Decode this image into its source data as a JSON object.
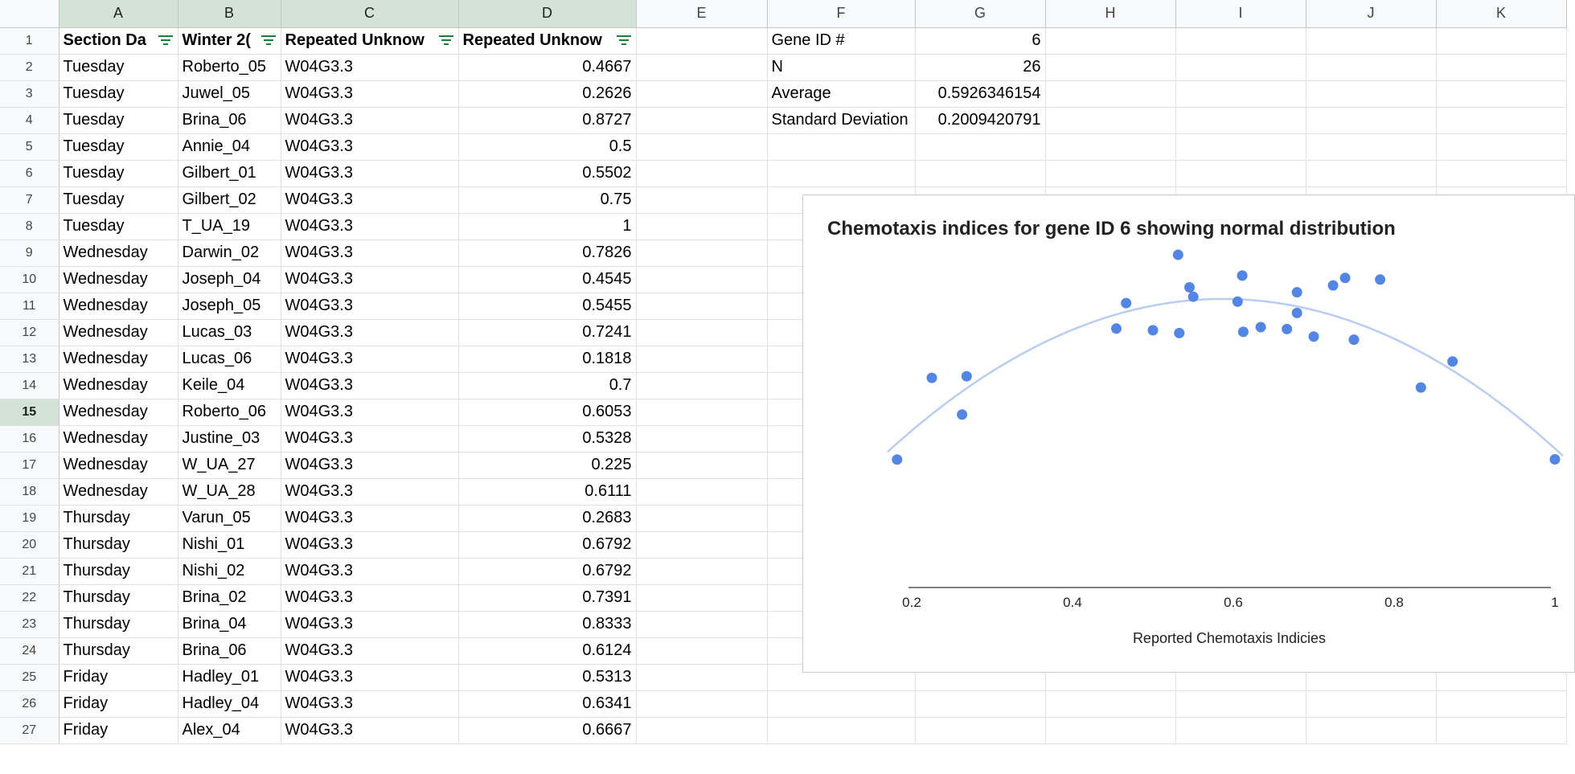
{
  "columns": [
    "A",
    "B",
    "C",
    "D",
    "E",
    "F",
    "G",
    "H",
    "I",
    "J",
    "K"
  ],
  "selected_row": 15,
  "headers": {
    "a": "Section Da",
    "b": "Winter 2(",
    "c": "Repeated Unknow",
    "d": "Repeated Unknow"
  },
  "rows": [
    {
      "day": "Tuesday",
      "name": "Roberto_05",
      "gene": "W04G3.3",
      "value": "0.4667"
    },
    {
      "day": "Tuesday",
      "name": "Juwel_05",
      "gene": "W04G3.3",
      "value": "0.2626"
    },
    {
      "day": "Tuesday",
      "name": "Brina_06",
      "gene": "W04G3.3",
      "value": "0.8727"
    },
    {
      "day": "Tuesday",
      "name": "Annie_04",
      "gene": "W04G3.3",
      "value": "0.5"
    },
    {
      "day": "Tuesday",
      "name": "Gilbert_01",
      "gene": "W04G3.3",
      "value": "0.5502"
    },
    {
      "day": "Tuesday",
      "name": "Gilbert_02",
      "gene": "W04G3.3",
      "value": "0.75"
    },
    {
      "day": "Tuesday",
      "name": "T_UA_19",
      "gene": "W04G3.3",
      "value": "1"
    },
    {
      "day": "Wednesday",
      "name": "Darwin_02",
      "gene": "W04G3.3",
      "value": "0.7826"
    },
    {
      "day": "Wednesday",
      "name": "Joseph_04",
      "gene": "W04G3.3",
      "value": "0.4545"
    },
    {
      "day": "Wednesday",
      "name": "Joseph_05",
      "gene": "W04G3.3",
      "value": "0.5455"
    },
    {
      "day": "Wednesday",
      "name": "Lucas_03",
      "gene": "W04G3.3",
      "value": "0.7241"
    },
    {
      "day": "Wednesday",
      "name": "Lucas_06",
      "gene": "W04G3.3",
      "value": "0.1818"
    },
    {
      "day": "Wednesday",
      "name": "Keile_04",
      "gene": "W04G3.3",
      "value": "0.7"
    },
    {
      "day": "Wednesday",
      "name": "Roberto_06",
      "gene": "W04G3.3",
      "value": "0.6053"
    },
    {
      "day": "Wednesday",
      "name": "Justine_03",
      "gene": "W04G3.3",
      "value": "0.5328"
    },
    {
      "day": "Wednesday",
      "name": "W_UA_27",
      "gene": "W04G3.3",
      "value": "0.225"
    },
    {
      "day": "Wednesday",
      "name": "W_UA_28",
      "gene": "W04G3.3",
      "value": "0.6111"
    },
    {
      "day": "Thursday",
      "name": "Varun_05",
      "gene": "W04G3.3",
      "value": "0.2683"
    },
    {
      "day": "Thursday",
      "name": "Nishi_01",
      "gene": "W04G3.3",
      "value": "0.6792"
    },
    {
      "day": "Thursday",
      "name": "Nishi_02",
      "gene": "W04G3.3",
      "value": "0.6792"
    },
    {
      "day": "Thursday",
      "name": "Brina_02",
      "gene": "W04G3.3",
      "value": "0.7391"
    },
    {
      "day": "Thursday",
      "name": "Brina_04",
      "gene": "W04G3.3",
      "value": "0.8333"
    },
    {
      "day": "Thursday",
      "name": "Brina_06",
      "gene": "W04G3.3",
      "value": "0.6124"
    },
    {
      "day": "Friday",
      "name": "Hadley_01",
      "gene": "W04G3.3",
      "value": "0.5313"
    },
    {
      "day": "Friday",
      "name": "Hadley_04",
      "gene": "W04G3.3",
      "value": "0.6341"
    },
    {
      "day": "Friday",
      "name": "Alex_04",
      "gene": "W04G3.3",
      "value": "0.6667"
    }
  ],
  "stats": [
    {
      "label": "Gene ID #",
      "value": "6"
    },
    {
      "label": "N",
      "value": "26"
    },
    {
      "label": "Average",
      "value": "0.5926346154"
    },
    {
      "label": "Standard Deviation",
      "value": "0.2009420791"
    }
  ],
  "colors": {
    "points": "#5386e4",
    "trendline": "#b9cdf3",
    "selection": "#d3e3d6",
    "filter_icon": "#188038"
  },
  "chart_data": {
    "type": "scatter",
    "title": "Chemotaxis indices for gene ID 6 showing normal distribution",
    "xlabel": "Reported Chemotaxis Indicies",
    "ylabel": "",
    "xlim": [
      0.17,
      1.01
    ],
    "ylim": [
      0,
      0.3
    ],
    "xticks": [
      "0.2",
      "0.4",
      "0.6",
      "0.8",
      "1"
    ],
    "grid": false,
    "legend": "none",
    "trendline": {
      "type": "polynomial",
      "degree": 2,
      "color": "#b9cdf3",
      "vertex_x": 0.59
    },
    "points": [
      {
        "x": 0.1818,
        "y": 0.0855
      },
      {
        "x": 0.225,
        "y": 0.1698
      },
      {
        "x": 0.2626,
        "y": 0.1319
      },
      {
        "x": 0.2683,
        "y": 0.1715
      },
      {
        "x": 0.4545,
        "y": 0.2206
      },
      {
        "x": 0.4667,
        "y": 0.2469
      },
      {
        "x": 0.5,
        "y": 0.2189
      },
      {
        "x": 0.5313,
        "y": 0.2967
      },
      {
        "x": 0.5328,
        "y": 0.216
      },
      {
        "x": 0.5455,
        "y": 0.2631
      },
      {
        "x": 0.5502,
        "y": 0.2534
      },
      {
        "x": 0.6053,
        "y": 0.2484
      },
      {
        "x": 0.6111,
        "y": 0.2752
      },
      {
        "x": 0.6124,
        "y": 0.2172
      },
      {
        "x": 0.6341,
        "y": 0.2221
      },
      {
        "x": 0.6667,
        "y": 0.2201
      },
      {
        "x": 0.6792,
        "y": 0.2581
      },
      {
        "x": 0.6792,
        "y": 0.2367
      },
      {
        "x": 0.7,
        "y": 0.2123
      },
      {
        "x": 0.7241,
        "y": 0.2651
      },
      {
        "x": 0.7391,
        "y": 0.2728
      },
      {
        "x": 0.75,
        "y": 0.2092
      },
      {
        "x": 0.7826,
        "y": 0.2712
      },
      {
        "x": 0.8333,
        "y": 0.1599
      },
      {
        "x": 0.8727,
        "y": 0.1866
      },
      {
        "x": 1,
        "y": 0.0858
      }
    ]
  }
}
